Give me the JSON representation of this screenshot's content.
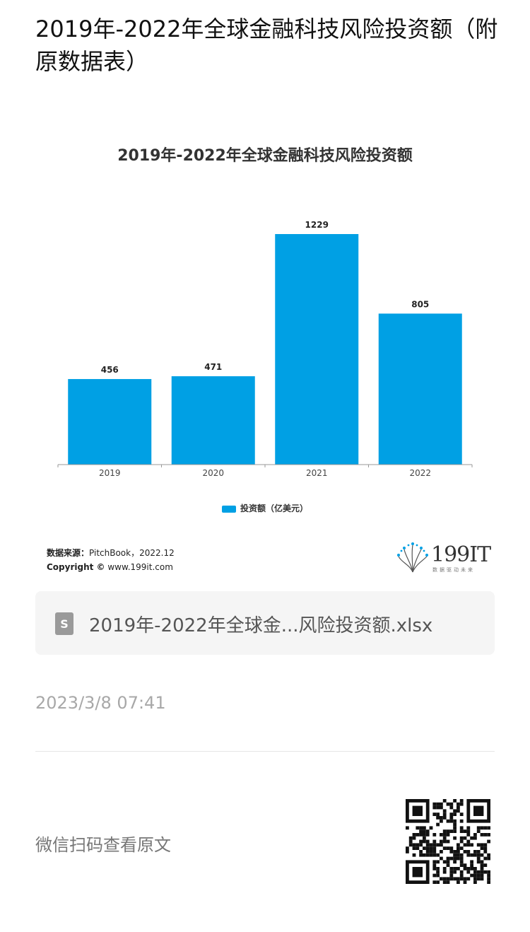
{
  "article": {
    "title": "2019年-2022年全球金融科技风险投资额（附原数据表）",
    "timestamp": "2023/3/8 07:41",
    "scan_text": "微信扫码查看原文"
  },
  "chart_data": {
    "type": "bar",
    "title": "2019年-2022年全球金融科技风险投资额",
    "categories": [
      "2019",
      "2020",
      "2021",
      "2022"
    ],
    "series": [
      {
        "name": "投资额（亿美元）",
        "values": [
          456,
          471,
          1229,
          805
        ],
        "color": "#00a0e4"
      }
    ],
    "ylim": [
      0,
      1229
    ],
    "grid": false,
    "legend": "bottom"
  },
  "source": {
    "label": "数据来源：",
    "text": "PitchBook，2022.12",
    "copyright_label": "Copyright ©",
    "copyright_text": " www.199it.com"
  },
  "brand": {
    "logo_text": "199IT",
    "logo_sub": "数据驱动未来"
  },
  "attachment": {
    "icon": "spreadsheet-file-icon",
    "icon_letter": "S",
    "name": "2019年-2022年全球金...风险投资额.xlsx"
  }
}
